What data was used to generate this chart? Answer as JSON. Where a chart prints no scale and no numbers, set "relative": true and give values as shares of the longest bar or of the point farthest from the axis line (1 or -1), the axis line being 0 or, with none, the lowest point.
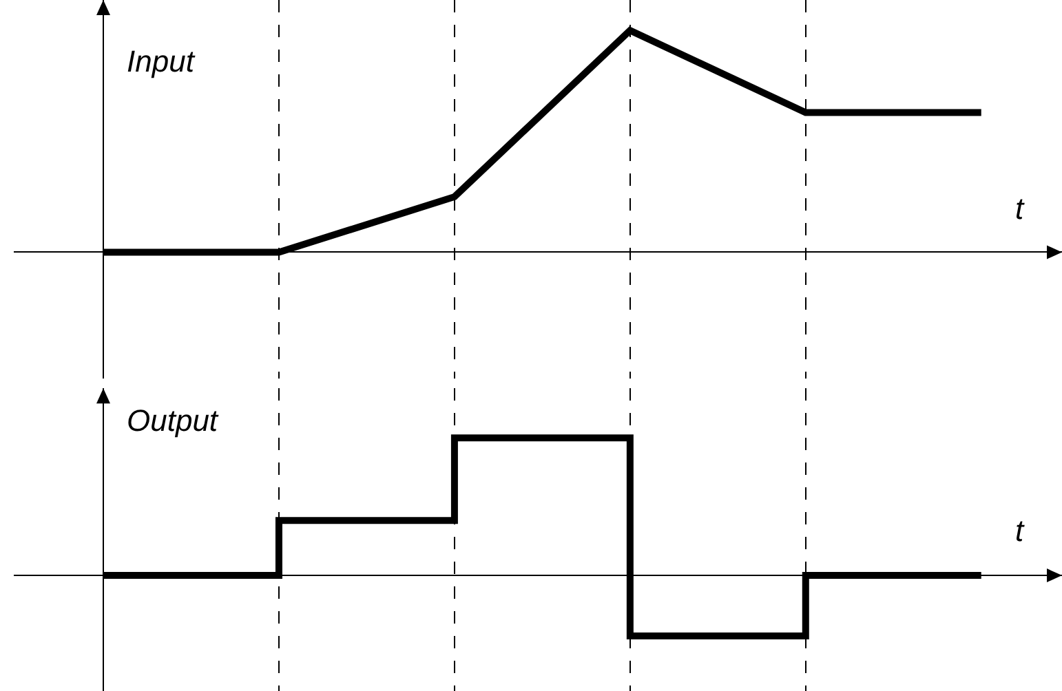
{
  "chart_data": [
    {
      "type": "line",
      "ylabel": "Input",
      "xlabel": "t",
      "relative": true,
      "categories": [
        null,
        null,
        null,
        null,
        null,
        null
      ],
      "series": [
        {
          "color": "#000000",
          "values": [
            0,
            0,
            0.25,
            1,
            0.63,
            0.63
          ]
        }
      ],
      "grid": "x",
      "marker": "none",
      "line_style": "solid"
    },
    {
      "type": "step",
      "ylabel": "Output",
      "xlabel": "t",
      "relative": true,
      "categories": [
        null,
        null,
        null,
        null,
        null,
        null
      ],
      "series": [
        {
          "color": "#000000",
          "values": [
            0,
            0.4,
            1,
            -0.44,
            0,
            0
          ]
        }
      ],
      "grid": "x",
      "marker": "none",
      "line_style": "solid"
    }
  ]
}
